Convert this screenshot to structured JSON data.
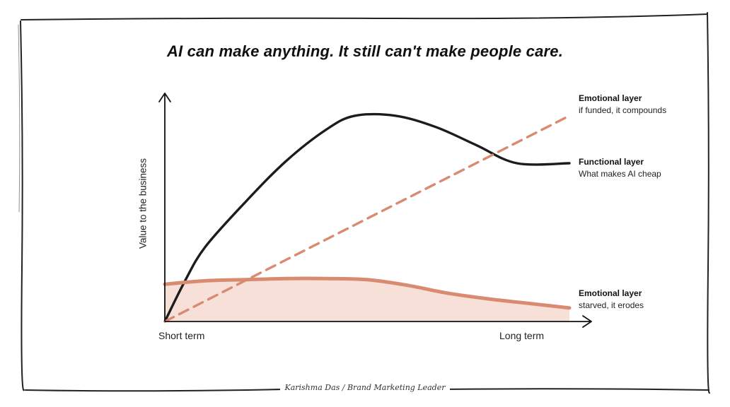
{
  "title": "AI can make anything. It still can't make people care.",
  "author": "Karishma Das / Brand Marketing Leader",
  "colors": {
    "ink": "#1c1c1c",
    "emotional": "#d98b72",
    "shade": "#f3d6c9",
    "frame": "#222222"
  },
  "chart_data": {
    "type": "line",
    "ylabel": "Value to the business",
    "x_tick_labels": [
      "Short term",
      "Long term"
    ],
    "xlim": [
      0,
      100
    ],
    "ylim": [
      0,
      100
    ],
    "grid": false,
    "legend": "direct labels at right end of each line",
    "series": [
      {
        "label_title": "Functional layer",
        "label_sub": "What makes AI cheap",
        "style": "solid-dark",
        "x": [
          0,
          5,
          10,
          20,
          30,
          40,
          47,
          57,
          67,
          77,
          87,
          100
        ],
        "y": [
          0,
          18,
          33,
          53,
          71,
          85,
          91,
          91,
          86,
          78,
          70,
          70
        ]
      },
      {
        "label_title": "Emotional layer",
        "label_sub": "if funded, it compounds",
        "style": "dashed-accent",
        "x": [
          0,
          100
        ],
        "y": [
          0,
          91
        ]
      },
      {
        "label_title": "Emotional layer",
        "label_sub": "starved, it erodes",
        "style": "thick-accent",
        "x": [
          0,
          10,
          20,
          30,
          40,
          50,
          60,
          70,
          80,
          90,
          100
        ],
        "y": [
          16.5,
          18,
          18.5,
          19,
          19,
          18.5,
          16,
          12.5,
          10,
          8,
          6
        ]
      }
    ]
  }
}
